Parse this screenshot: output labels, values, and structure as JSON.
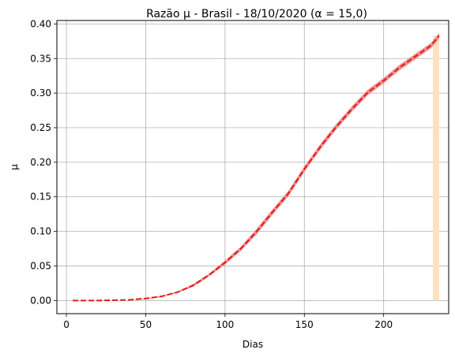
{
  "chart_data": {
    "type": "line",
    "title": "Razão μ - Brasil - 18/10/2020 (α = 15,0)",
    "xlabel": "Dias",
    "ylabel": "μ",
    "xlim": [
      -6,
      241
    ],
    "ylim": [
      -0.019,
      0.405
    ],
    "grid": true,
    "xticks": [
      0,
      50,
      100,
      150,
      200
    ],
    "yticks": [
      "0.00",
      "0.05",
      "0.10",
      "0.15",
      "0.20",
      "0.25",
      "0.30",
      "0.35",
      "0.40"
    ],
    "series": [
      {
        "style": "dashed",
        "color": "#e31a1c",
        "band_color": "#f08080",
        "x": [
          4,
          20,
          40,
          50,
          60,
          70,
          80,
          90,
          100,
          110,
          120,
          130,
          140,
          150,
          160,
          170,
          180,
          190,
          200,
          210,
          220,
          230,
          235
        ],
        "y": [
          0.0,
          0.0,
          0.001,
          0.003,
          0.006,
          0.012,
          0.022,
          0.037,
          0.055,
          0.075,
          0.1,
          0.128,
          0.155,
          0.19,
          0.222,
          0.251,
          0.277,
          0.301,
          0.318,
          0.337,
          0.353,
          0.369,
          0.383
        ],
        "upper": [
          0.0,
          0.0,
          0.001,
          0.003,
          0.007,
          0.013,
          0.024,
          0.039,
          0.058,
          0.078,
          0.104,
          0.132,
          0.159,
          0.194,
          0.226,
          0.255,
          0.281,
          0.305,
          0.322,
          0.341,
          0.357,
          0.373,
          0.387
        ],
        "lower": [
          0.0,
          0.0,
          0.001,
          0.002,
          0.005,
          0.011,
          0.02,
          0.035,
          0.052,
          0.072,
          0.096,
          0.124,
          0.151,
          0.186,
          0.218,
          0.247,
          0.273,
          0.297,
          0.314,
          0.333,
          0.349,
          0.365,
          0.379
        ]
      }
    ],
    "highlight_span": {
      "x": [
        231,
        235
      ],
      "y": [
        0.0,
        0.383
      ],
      "color": "#ffe0bf"
    }
  }
}
